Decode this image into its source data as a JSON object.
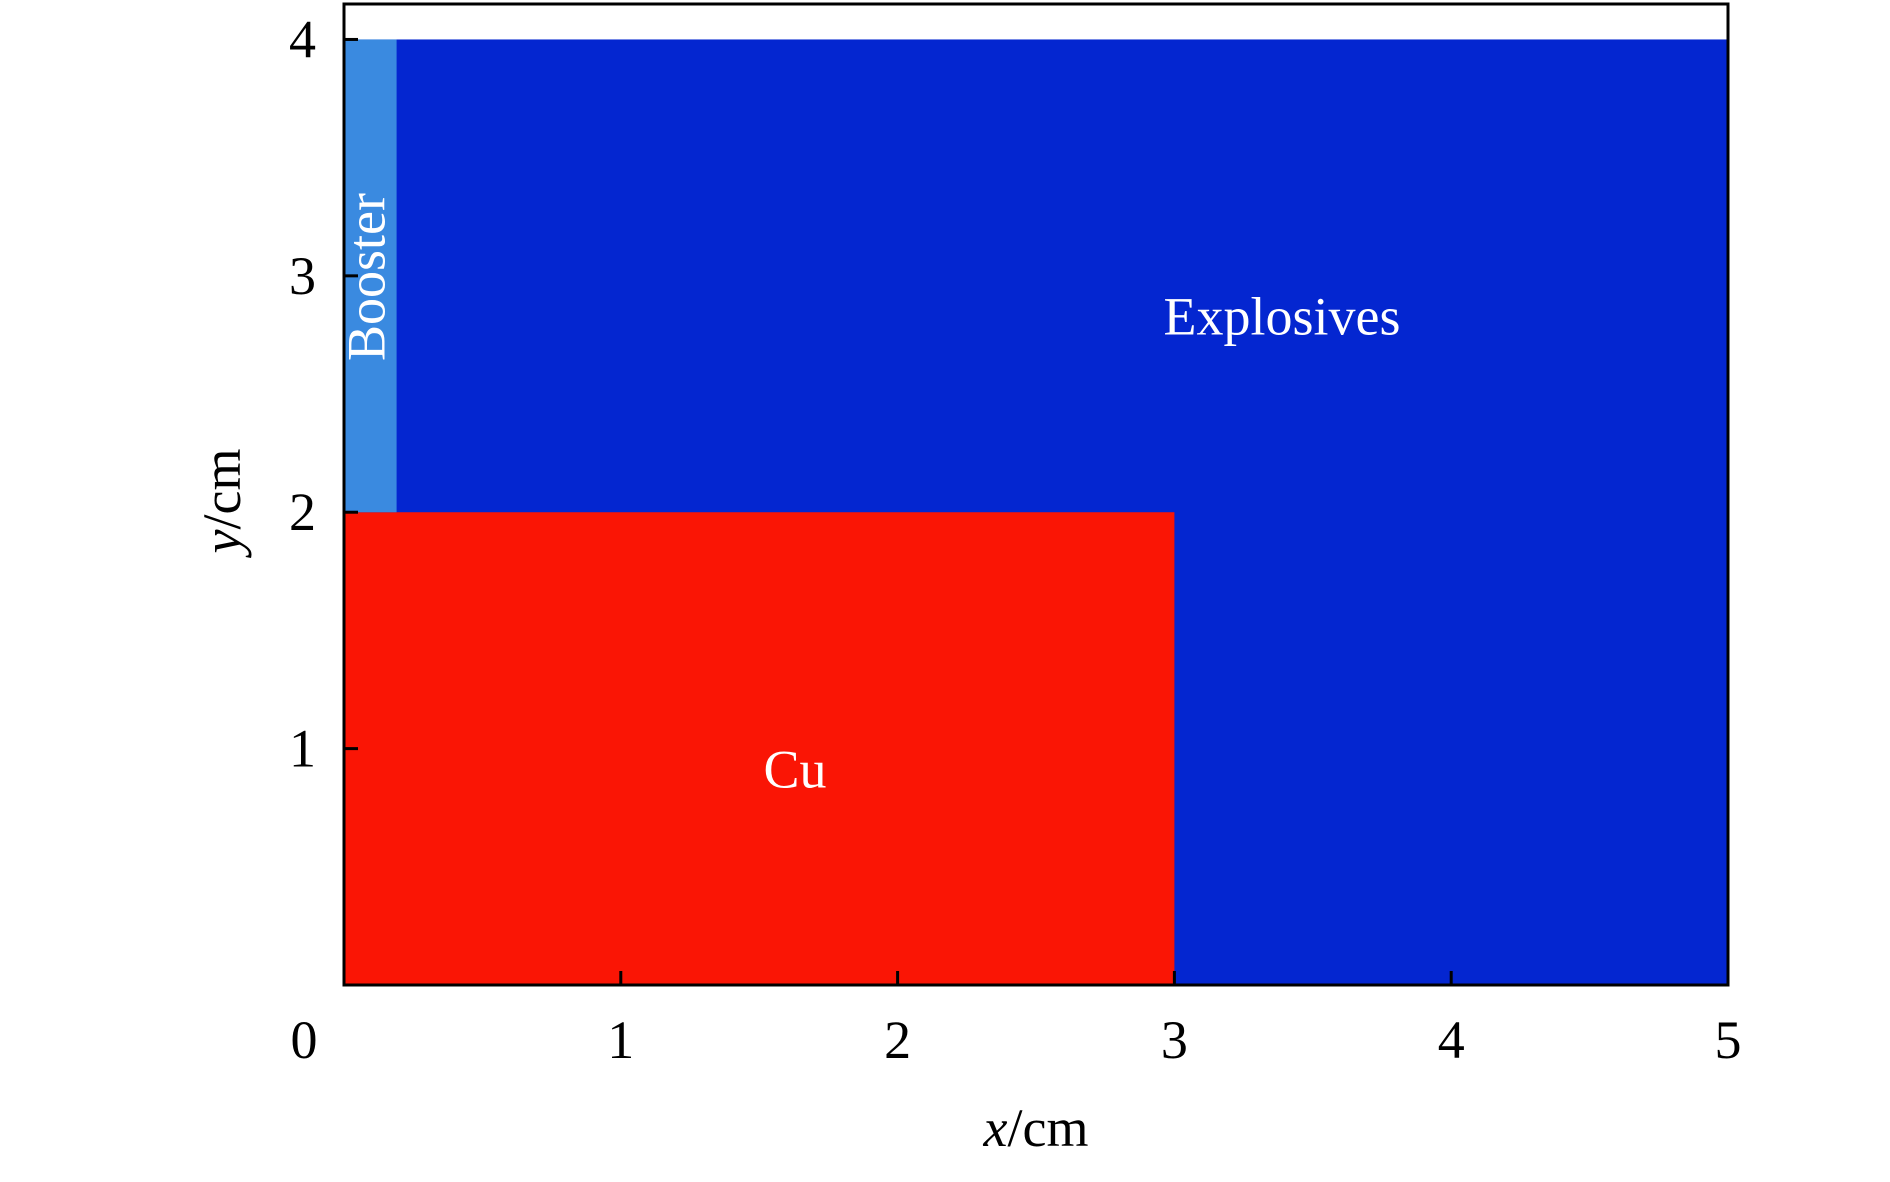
{
  "chart_data": {
    "type": "region",
    "x_label": "x/cm",
    "y_label": "y/cm",
    "xlim": [
      0,
      5
    ],
    "ylim": [
      0,
      4.15
    ],
    "xticks": [
      0,
      1,
      2,
      3,
      4,
      5
    ],
    "yticks": [
      1,
      2,
      3,
      4
    ],
    "regions": [
      {
        "name": "Explosives",
        "x": [
          0,
          5
        ],
        "y": [
          0,
          4
        ],
        "color": "#0426d0"
      },
      {
        "name": "Cu",
        "x": [
          0,
          3
        ],
        "y": [
          0,
          2
        ],
        "color": "#fa1505"
      },
      {
        "name": "Booster",
        "x": [
          0,
          0.19
        ],
        "y": [
          2,
          4
        ],
        "color": "#3a8ae0"
      }
    ]
  }
}
